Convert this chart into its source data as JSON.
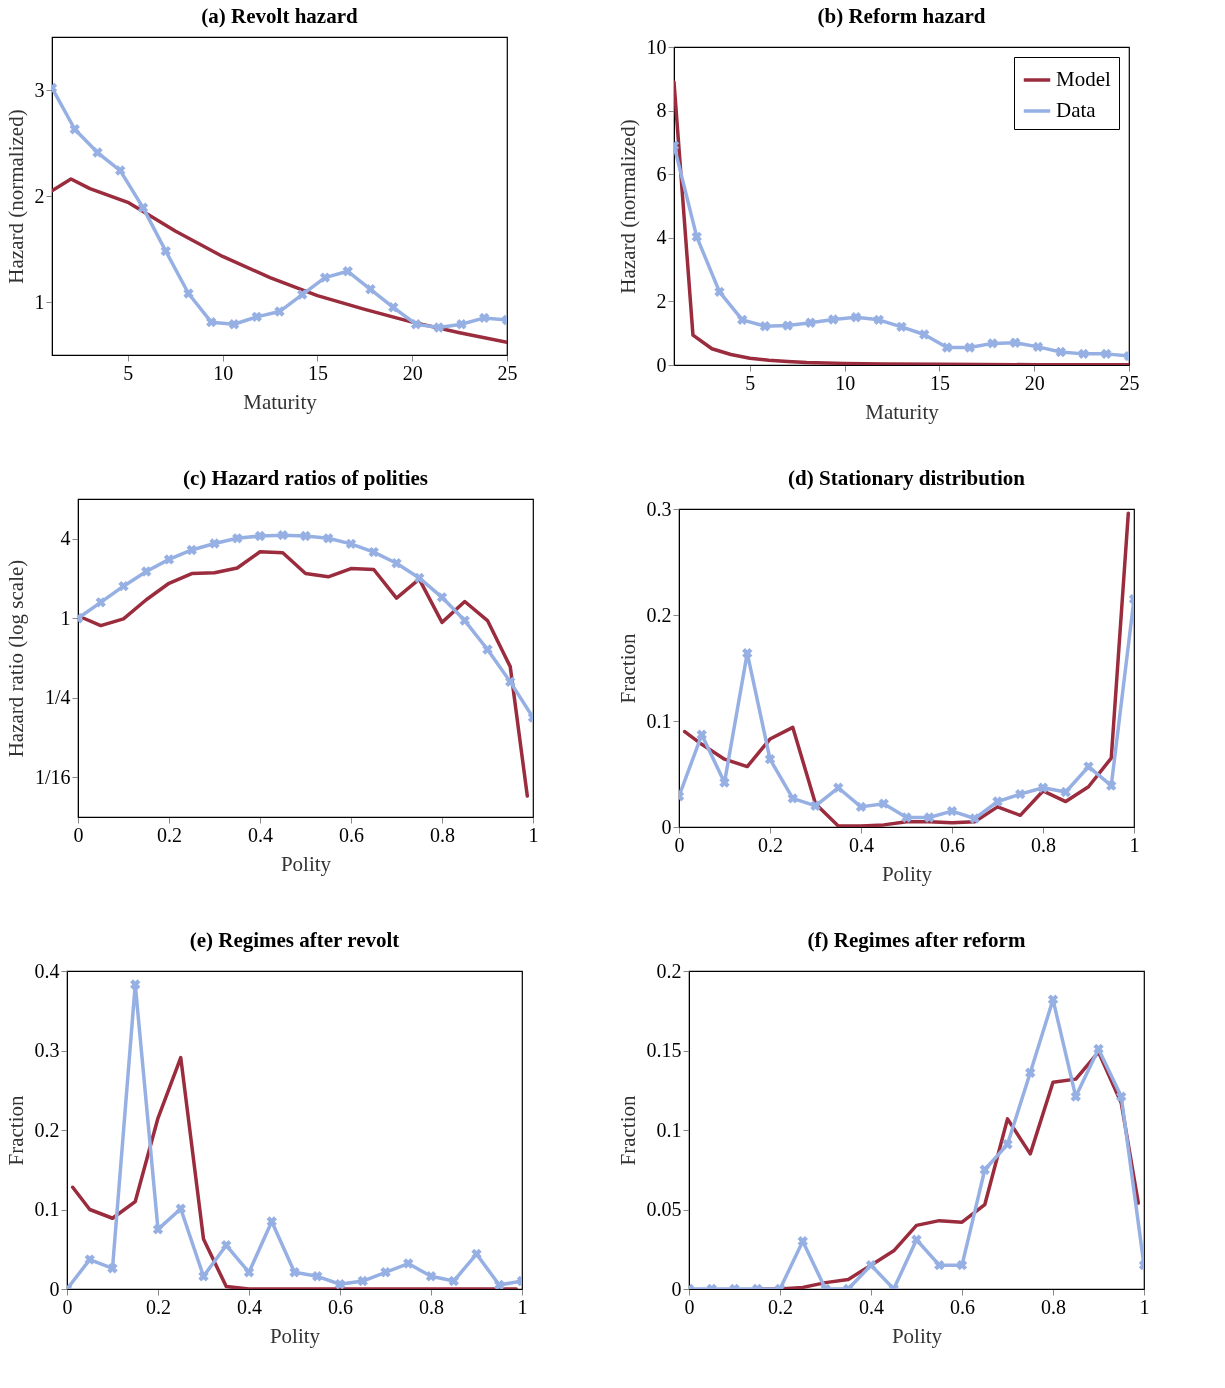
{
  "chart_data": [
    {
      "type": "line",
      "title": "(a) Revolt hazard",
      "xlabel": "Maturity",
      "ylabel": "Hazard (normalized)",
      "xlim": [
        1,
        25
      ],
      "xticks": [
        5,
        10,
        15,
        20,
        25
      ],
      "ylim": [
        0.5,
        3.5
      ],
      "yticks": [
        1,
        2,
        3
      ],
      "series": [
        {
          "color": "#9a2c3d",
          "x": [
            1,
            2,
            3,
            5,
            7.5,
            10,
            12.5,
            15,
            17.5,
            20,
            22.5,
            25
          ],
          "values": [
            2.05,
            2.16,
            2.07,
            1.94,
            1.67,
            1.43,
            1.23,
            1.06,
            0.93,
            0.81,
            0.71,
            0.62
          ]
        },
        {
          "color": "#97b0e4",
          "marker": "cross",
          "x": [
            1,
            2.2,
            3.4,
            4.6,
            5.8,
            7,
            8.2,
            9.4,
            10.6,
            11.8,
            13,
            14.2,
            15.4,
            16.6,
            17.8,
            19,
            20.2,
            21.4,
            22.6,
            23.8,
            25
          ],
          "values": [
            3.02,
            2.63,
            2.41,
            2.24,
            1.89,
            1.48,
            1.08,
            0.81,
            0.79,
            0.86,
            0.91,
            1.07,
            1.23,
            1.29,
            1.12,
            0.95,
            0.79,
            0.76,
            0.79,
            0.85,
            0.83
          ]
        }
      ]
    },
    {
      "type": "line",
      "title": "(b) Reform hazard",
      "xlabel": "Maturity",
      "ylabel": "Hazard (normalized)",
      "xlim": [
        1,
        25
      ],
      "xticks": [
        5,
        10,
        15,
        20,
        25
      ],
      "ylim": [
        0,
        10
      ],
      "yticks": [
        0,
        2,
        4,
        6,
        8,
        10
      ],
      "legend": "top right",
      "series": [
        {
          "name": "Model",
          "color": "#9a2c3d",
          "x": [
            1,
            2,
            3,
            4,
            5,
            6,
            7,
            8,
            10,
            12,
            15,
            20,
            25
          ],
          "values": [
            8.9,
            0.94,
            0.51,
            0.33,
            0.21,
            0.15,
            0.11,
            0.08,
            0.05,
            0.03,
            0.02,
            0.01,
            0.01
          ]
        },
        {
          "name": "Data",
          "color": "#97b0e4",
          "marker": "cross",
          "x": [
            1,
            2.2,
            3.4,
            4.6,
            5.8,
            7,
            8.2,
            9.4,
            10.6,
            11.8,
            13,
            14.2,
            15.4,
            16.6,
            17.8,
            19,
            20.2,
            21.4,
            22.6,
            23.8,
            25
          ],
          "values": [
            6.9,
            4.03,
            2.3,
            1.42,
            1.22,
            1.24,
            1.33,
            1.43,
            1.5,
            1.42,
            1.2,
            0.96,
            0.55,
            0.55,
            0.68,
            0.7,
            0.57,
            0.41,
            0.35,
            0.35,
            0.28
          ]
        }
      ]
    },
    {
      "type": "line",
      "title": "(c) Hazard ratios of polities",
      "xlabel": "Polity",
      "ylabel": "Hazard ratio (log scale)",
      "log": true,
      "xlim": [
        0,
        1
      ],
      "xticks": [
        0,
        0.2,
        0.4,
        0.6,
        0.8,
        1
      ],
      "ylim": [
        0.03125,
        8
      ],
      "yticks": [
        {
          "value": 0.0625,
          "label": "1/16"
        },
        {
          "value": 0.25,
          "label": "1/4"
        },
        1,
        4
      ],
      "series": [
        {
          "color": "#9a2c3d",
          "x": [
            0.0125,
            0.05,
            0.1,
            0.15,
            0.2,
            0.25,
            0.3,
            0.35,
            0.4,
            0.45,
            0.5,
            0.55,
            0.6,
            0.65,
            0.7,
            0.75,
            0.8,
            0.85,
            0.9,
            0.95,
            0.9875
          ],
          "values": [
            1.0,
            0.88,
            0.99,
            1.38,
            1.84,
            2.18,
            2.21,
            2.4,
            3.19,
            3.13,
            2.18,
            2.06,
            2.38,
            2.34,
            1.42,
            1.98,
            0.93,
            1.34,
            0.96,
            0.43,
            0.045
          ]
        },
        {
          "color": "#97b0e4",
          "marker": "cross",
          "x": [
            0,
            0.05,
            0.1,
            0.15,
            0.2,
            0.25,
            0.3,
            0.35,
            0.4,
            0.45,
            0.5,
            0.55,
            0.6,
            0.65,
            0.7,
            0.75,
            0.8,
            0.85,
            0.9,
            0.95,
            1
          ],
          "values": [
            1.0,
            1.32,
            1.75,
            2.26,
            2.79,
            3.29,
            3.68,
            4.03,
            4.2,
            4.26,
            4.2,
            4.03,
            3.66,
            3.17,
            2.61,
            2.02,
            1.44,
            0.96,
            0.58,
            0.33,
            0.177
          ]
        }
      ]
    },
    {
      "type": "line",
      "title": "(d) Stationary distribution",
      "xlabel": "Polity",
      "ylabel": "Fraction",
      "xlim": [
        0,
        1
      ],
      "xticks": [
        0,
        0.2,
        0.4,
        0.6,
        0.8,
        1
      ],
      "ylim": [
        0,
        0.3
      ],
      "yticks": [
        0,
        0.1,
        0.2,
        0.3
      ],
      "series": [
        {
          "color": "#9a2c3d",
          "x": [
            0.0125,
            0.05,
            0.1,
            0.15,
            0.2,
            0.25,
            0.3,
            0.35,
            0.4,
            0.45,
            0.5,
            0.55,
            0.6,
            0.65,
            0.7,
            0.75,
            0.8,
            0.85,
            0.9,
            0.95,
            0.9875
          ],
          "values": [
            0.09,
            0.078,
            0.064,
            0.057,
            0.083,
            0.094,
            0.022,
            0.001,
            0.001,
            0.002,
            0.005,
            0.005,
            0.004,
            0.005,
            0.019,
            0.011,
            0.034,
            0.024,
            0.038,
            0.065,
            0.296
          ]
        },
        {
          "color": "#97b0e4",
          "marker": "cross",
          "x": [
            0,
            0.05,
            0.1,
            0.15,
            0.2,
            0.25,
            0.3,
            0.35,
            0.4,
            0.45,
            0.5,
            0.55,
            0.6,
            0.65,
            0.7,
            0.75,
            0.8,
            0.85,
            0.9,
            0.95,
            1
          ],
          "values": [
            0.029,
            0.087,
            0.042,
            0.164,
            0.064,
            0.027,
            0.02,
            0.037,
            0.019,
            0.022,
            0.009,
            0.009,
            0.015,
            0.008,
            0.024,
            0.031,
            0.037,
            0.033,
            0.057,
            0.039,
            0.215
          ]
        }
      ]
    },
    {
      "type": "line",
      "title": "(e) Regimes after revolt",
      "xlabel": "Polity",
      "ylabel": "Fraction",
      "xlim": [
        0,
        1
      ],
      "xticks": [
        0,
        0.2,
        0.4,
        0.6,
        0.8,
        1
      ],
      "ylim": [
        0,
        0.4
      ],
      "yticks": [
        0,
        0.1,
        0.2,
        0.3,
        0.4
      ],
      "series": [
        {
          "color": "#9a2c3d",
          "x": [
            0.0125,
            0.05,
            0.1,
            0.15,
            0.2,
            0.25,
            0.3,
            0.35,
            0.4,
            0.45,
            0.5,
            0.55,
            0.6,
            0.65,
            0.7,
            0.75,
            0.8,
            0.85,
            0.9,
            0.95,
            0.9875
          ],
          "values": [
            0.128,
            0.1,
            0.089,
            0.11,
            0.215,
            0.291,
            0.063,
            0.003,
            0,
            0,
            0,
            0,
            0,
            0,
            0,
            0,
            0,
            0,
            0,
            0,
            0
          ]
        },
        {
          "color": "#97b0e4",
          "marker": "cross",
          "x": [
            0,
            0.05,
            0.1,
            0.15,
            0.2,
            0.25,
            0.3,
            0.35,
            0.4,
            0.45,
            0.5,
            0.55,
            0.6,
            0.65,
            0.7,
            0.75,
            0.8,
            0.85,
            0.9,
            0.95,
            1
          ],
          "values": [
            0,
            0.037,
            0.026,
            0.383,
            0.075,
            0.101,
            0.016,
            0.055,
            0.021,
            0.085,
            0.021,
            0.016,
            0.006,
            0.01,
            0.021,
            0.032,
            0.016,
            0.01,
            0.044,
            0.005,
            0.01
          ]
        }
      ]
    },
    {
      "type": "line",
      "title": "(f) Regimes after reform",
      "xlabel": "Polity",
      "ylabel": "Fraction",
      "xlim": [
        0,
        1
      ],
      "xticks": [
        0,
        0.2,
        0.4,
        0.6,
        0.8,
        1
      ],
      "ylim": [
        0,
        0.2
      ],
      "yticks": [
        0,
        0.05,
        0.1,
        0.15,
        0.2
      ],
      "series": [
        {
          "color": "#9a2c3d",
          "x": [
            0.15,
            0.2,
            0.25,
            0.3,
            0.35,
            0.4,
            0.45,
            0.5,
            0.55,
            0.6,
            0.65,
            0.7,
            0.75,
            0.8,
            0.85,
            0.9,
            0.95,
            0.9875
          ],
          "values": [
            0,
            0,
            0.001,
            0.004,
            0.006,
            0.015,
            0.024,
            0.04,
            0.043,
            0.042,
            0.053,
            0.107,
            0.085,
            0.13,
            0.132,
            0.149,
            0.117,
            0.054
          ]
        },
        {
          "color": "#97b0e4",
          "marker": "cross",
          "x": [
            0,
            0.05,
            0.1,
            0.15,
            0.2,
            0.25,
            0.3,
            0.35,
            0.4,
            0.45,
            0.5,
            0.55,
            0.6,
            0.65,
            0.7,
            0.75,
            0.8,
            0.85,
            0.9,
            0.95,
            1
          ],
          "values": [
            0,
            0,
            0,
            0,
            0,
            0.03,
            0,
            0,
            0.015,
            0,
            0.031,
            0.015,
            0.015,
            0.075,
            0.091,
            0.136,
            0.182,
            0.121,
            0.151,
            0.121,
            0.015
          ]
        }
      ]
    }
  ]
}
